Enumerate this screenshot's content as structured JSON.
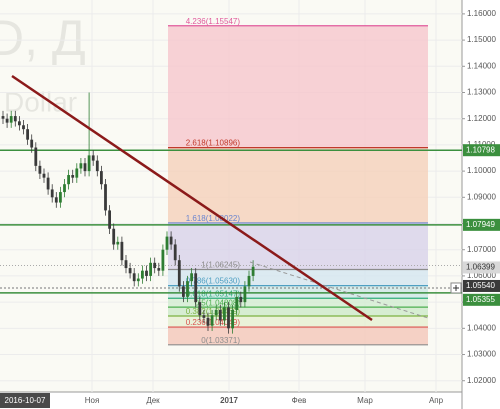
{
  "watermark": {
    "symbol": "D, Д",
    "name": "Dollar"
  },
  "chart_data": {
    "type": "candlestick",
    "colors": {
      "up": "#2e7d32",
      "down": "#3a3a3a"
    },
    "open": [
      1.121,
      1.12,
      1.1185,
      1.121,
      1.119,
      1.1175,
      1.116,
      1.112,
      1.109,
      1.102,
      1.099,
      1.0975,
      1.093,
      1.09,
      1.088,
      1.092,
      1.095,
      1.0985,
      1.0975,
      1.101,
      1.103,
      1.1,
      1.106,
      1.104,
      1.1,
      1.095,
      1.085,
      1.078,
      1.072,
      1.073,
      1.066,
      1.063,
      1.061,
      1.058,
      1.059,
      1.062,
      1.06,
      1.065,
      1.063,
      1.062,
      1.07,
      1.075,
      1.072,
      1.066,
      1.056,
      1.052,
      1.058,
      1.061,
      1.05,
      1.045,
      1.044,
      1.041,
      1.045,
      1.047,
      1.043,
      1.048,
      1.04,
      1.047,
      1.052,
      1.05,
      1.056,
      1.06
    ],
    "high": [
      1.123,
      1.122,
      1.123,
      1.123,
      1.121,
      1.1195,
      1.118,
      1.114,
      1.111,
      1.104,
      1.101,
      1.0995,
      1.095,
      1.092,
      1.094,
      1.097,
      1.1005,
      1.1005,
      1.103,
      1.105,
      1.105,
      1.13,
      1.108,
      1.106,
      1.102,
      1.097,
      1.087,
      1.08,
      1.075,
      1.075,
      1.068,
      1.065,
      1.063,
      1.061,
      1.064,
      1.064,
      1.067,
      1.067,
      1.065,
      1.072,
      1.077,
      1.077,
      1.074,
      1.068,
      1.058,
      1.06,
      1.063,
      1.063,
      1.052,
      1.047,
      1.046,
      1.047,
      1.049,
      1.049,
      1.05,
      1.05,
      1.049,
      1.054,
      1.054,
      1.058,
      1.062,
      1.066
    ],
    "low": [
      1.118,
      1.1165,
      1.1165,
      1.117,
      1.1155,
      1.114,
      1.11,
      1.107,
      1.1,
      1.097,
      1.0955,
      1.091,
      1.088,
      1.086,
      1.086,
      1.09,
      1.093,
      1.0955,
      1.0955,
      1.099,
      1.098,
      1.098,
      1.102,
      1.098,
      1.093,
      1.083,
      1.076,
      1.07,
      1.07,
      1.064,
      1.061,
      1.059,
      1.056,
      1.056,
      1.057,
      1.058,
      1.058,
      1.061,
      1.06,
      1.06,
      1.068,
      1.07,
      1.064,
      1.054,
      1.05,
      1.05,
      1.056,
      1.048,
      1.043,
      1.042,
      1.039,
      1.039,
      1.043,
      1.041,
      1.041,
      1.038,
      1.038,
      1.045,
      1.048,
      1.048,
      1.054,
      1.058
    ],
    "close": [
      1.12,
      1.1185,
      1.121,
      1.119,
      1.1175,
      1.116,
      1.112,
      1.109,
      1.102,
      1.099,
      1.0975,
      1.093,
      1.09,
      1.088,
      1.092,
      1.095,
      1.0985,
      1.0975,
      1.101,
      1.103,
      1.1,
      1.106,
      1.104,
      1.1,
      1.095,
      1.085,
      1.078,
      1.072,
      1.073,
      1.066,
      1.063,
      1.061,
      1.058,
      1.059,
      1.062,
      1.06,
      1.065,
      1.063,
      1.062,
      1.07,
      1.075,
      1.072,
      1.066,
      1.056,
      1.052,
      1.058,
      1.061,
      1.05,
      1.045,
      1.044,
      1.041,
      1.045,
      1.047,
      1.043,
      1.048,
      1.04,
      1.047,
      1.052,
      1.05,
      1.056,
      1.06,
      1.0635
    ],
    "ylim": [
      1.0157,
      1.1653
    ],
    "yticks": [
      {
        "value": 1.16,
        "label": "1.16000"
      },
      {
        "value": 1.15,
        "label": "1.15000"
      },
      {
        "value": 1.14,
        "label": "1.14000"
      },
      {
        "value": 1.13,
        "label": "1.13000"
      },
      {
        "value": 1.12,
        "label": "1.12000"
      },
      {
        "value": 1.11,
        "label": "1.11000"
      },
      {
        "value": 1.1,
        "label": "1.10000"
      },
      {
        "value": 1.09,
        "label": "1.09000"
      },
      {
        "value": 1.08,
        "label": "1.08000"
      },
      {
        "value": 1.07,
        "label": "1.07000"
      },
      {
        "value": 1.06,
        "label": "1.06000"
      },
      {
        "value": 1.05,
        "label": "1.05000"
      },
      {
        "value": 1.04,
        "label": "1.04000"
      },
      {
        "value": 1.03,
        "label": "1.03000"
      },
      {
        "value": 1.02,
        "label": "1.02000"
      }
    ],
    "xlabels": [
      "Ноя",
      "Дек",
      "2017",
      "Фев",
      "Мар",
      "Апр"
    ],
    "cursor_date": "2016-10-07",
    "grid": true,
    "fibonacci": [
      {
        "label": "4.236(1.15547)",
        "value": 1.15547,
        "color": "#e05a9c",
        "zone_color": "#f6c9cf"
      },
      {
        "label": "2.618(1.10896)",
        "value": 1.10896,
        "color": "#c0392b",
        "zone_color": "#f5d2bd"
      },
      {
        "label": "1.618(1.08022)",
        "value": 1.08022,
        "color": "#6a85d0",
        "zone_color": "#d9d4ea"
      },
      {
        "label": "1(1.06245)",
        "value": 1.06245,
        "color": "#8c8c8c",
        "zone_color": "#d6e6f0"
      },
      {
        "label": "0.786(1.05630)",
        "value": 1.0563,
        "color": "#4f9fc2",
        "zone_color": "#cfe8e6"
      },
      {
        "label": "0.618(1.05147)",
        "value": 1.05147,
        "color": "#2fae7a",
        "zone_color": "#d4ecd3"
      },
      {
        "label": "0.5(1.04808)",
        "value": 1.04808,
        "color": "#4caf50",
        "zone_color": "#cfeacb"
      },
      {
        "label": "0.382(1.04469)",
        "value": 1.04469,
        "color": "#7cb342",
        "zone_color": "#e6f0d4"
      },
      {
        "label": "0.236(1.04049)",
        "value": 1.04049,
        "color": "#d9534f",
        "zone_color": "#f3c9bc"
      },
      {
        "label": "0(1.03371)",
        "value": 1.03371,
        "color": "#8c8c8c"
      }
    ],
    "price_lines": [
      {
        "value": 1.10798,
        "color": "#3b8f3e"
      },
      {
        "value": 1.07949,
        "color": "#3b8f3e"
      },
      {
        "value": 1.05355,
        "color": "#3b8f3e"
      }
    ],
    "last_price": 1.06399,
    "cursor_price": {
      "value": 1.0554,
      "label": "1.05540"
    }
  }
}
